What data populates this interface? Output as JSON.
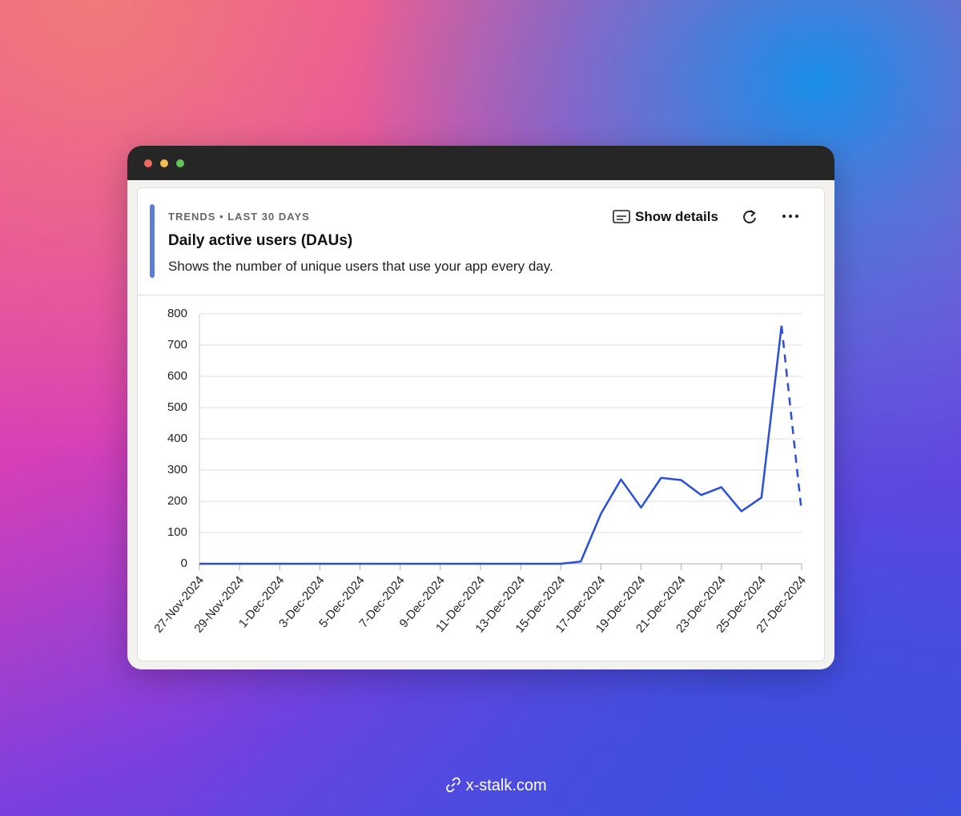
{
  "header": {
    "eyebrow": "TRENDS",
    "period": "LAST 30 DAYS",
    "title": "Daily active users (DAUs)",
    "description": "Shows the number of unique users that use your app every day.",
    "action": "Show details"
  },
  "footer": "x-stalk.com",
  "chart_data": {
    "type": "line",
    "categories": [
      "27-Nov-2024",
      null,
      "29-Nov-2024",
      null,
      "1-Dec-2024",
      null,
      "3-Dec-2024",
      null,
      "5-Dec-2024",
      null,
      "7-Dec-2024",
      null,
      "9-Dec-2024",
      null,
      "11-Dec-2024",
      null,
      "13-Dec-2024",
      null,
      "15-Dec-2024",
      null,
      "17-Dec-2024",
      null,
      "19-Dec-2024",
      null,
      "21-Dec-2024",
      null,
      "23-Dec-2024",
      null,
      "25-Dec-2024",
      null,
      "27-Dec-2024"
    ],
    "values": [
      0,
      0,
      0,
      0,
      0,
      0,
      0,
      0,
      0,
      0,
      0,
      0,
      0,
      0,
      0,
      0,
      0,
      0,
      0,
      7,
      160,
      270,
      180,
      275,
      268,
      220,
      245,
      168,
      212,
      762,
      165
    ],
    "color": "#2a4fd8",
    "incomplete_last_point": true,
    "ylim": [
      0,
      800
    ],
    "yticks": [
      0,
      100,
      200,
      300,
      400,
      500,
      600,
      700,
      800
    ],
    "grid": true
  }
}
